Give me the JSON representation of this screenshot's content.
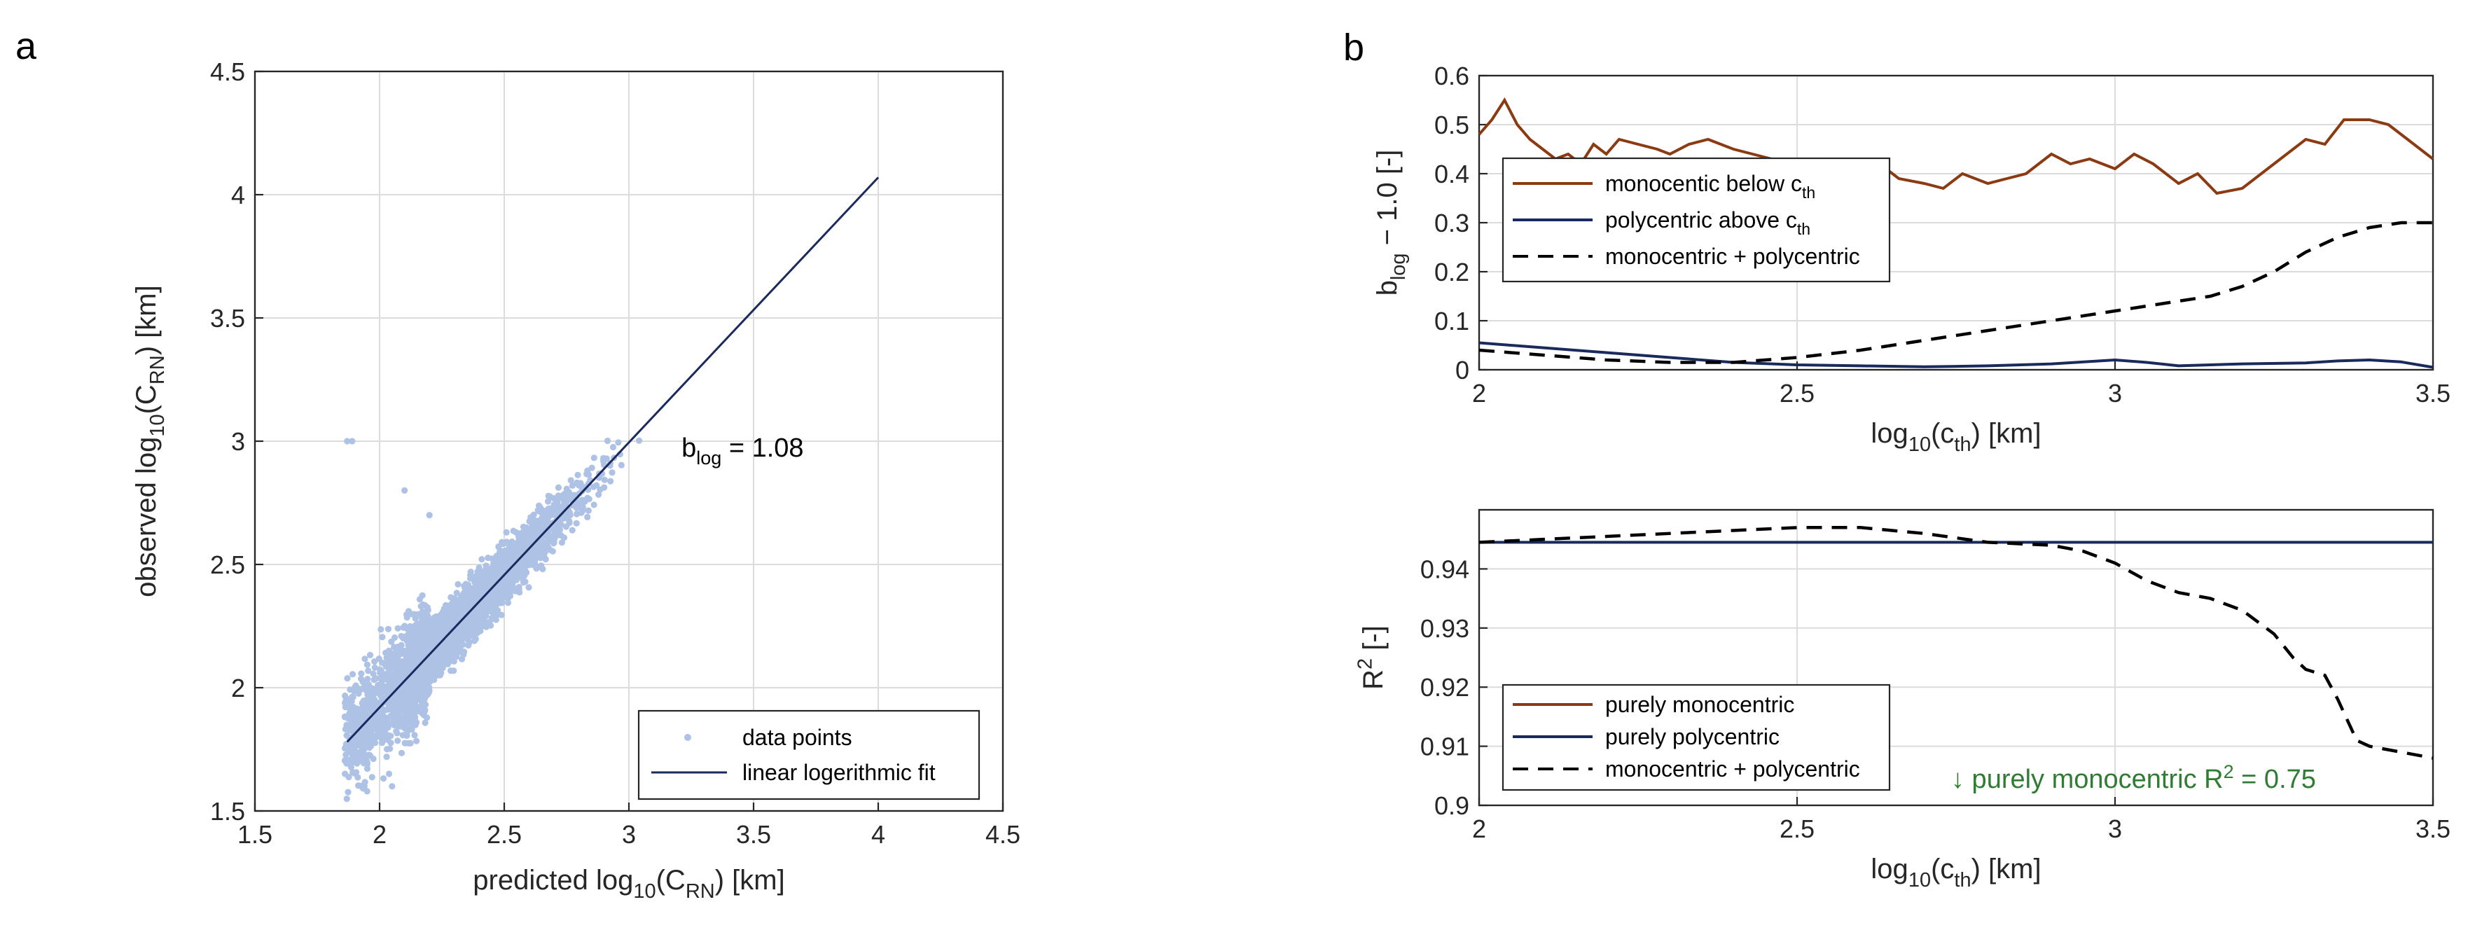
{
  "chart_data": [
    {
      "panel_label": "a",
      "type": "scatter",
      "xlabel": {
        "base": "predicted log",
        "sub1": "10",
        "mid": "(C",
        "sub2": "RN",
        "end": ") [km]"
      },
      "ylabel": {
        "base": "observed log",
        "sub1": "10",
        "mid": "(C",
        "sub2": "RN",
        "end": ") [km]"
      },
      "xlim": [
        1.5,
        4.5
      ],
      "ylim": [
        1.5,
        4.5
      ],
      "xticks": [
        "1.5",
        "2",
        "2.5",
        "3",
        "3.5",
        "4",
        "4.5"
      ],
      "yticks": [
        "1.5",
        "2",
        "2.5",
        "3",
        "3.5",
        "4",
        "4.5"
      ],
      "grid": true,
      "series": [
        {
          "name": "data points",
          "kind": "scatter",
          "color": "#aec2e6",
          "n_points": 3200,
          "x_range": [
            1.86,
            4.0
          ],
          "slope": 1.08,
          "spread": 0.1
        },
        {
          "name": "linear logerithmic fit",
          "kind": "line",
          "color": "#1b2a5c",
          "x": [
            1.87,
            4.0
          ],
          "y": [
            1.78,
            4.07
          ]
        }
      ],
      "outlier_points": [
        [
          1.87,
          3.0
        ],
        [
          1.89,
          3.0
        ],
        [
          2.1,
          2.8
        ],
        [
          2.2,
          2.7
        ],
        [
          1.95,
          1.58
        ],
        [
          2.05,
          1.6
        ]
      ],
      "annotation": {
        "base": "b",
        "sub": "log",
        "rest": " = 1.08",
        "x": 3.52,
        "y": 3.0
      },
      "legend_position": "bottom-right"
    },
    {
      "panel_label": "b",
      "type": "line",
      "xlabel": {
        "base": "log",
        "sub1": "10",
        "mid": "(c",
        "sub2": "th",
        "end": ") [km]"
      },
      "ylabel": {
        "base": "b",
        "sub": "log",
        "rest": " − 1.0 [-]"
      },
      "xlim": [
        2,
        3.5
      ],
      "ylim": [
        0,
        0.6
      ],
      "xticks": [
        "2",
        "2.5",
        "3",
        "3.5"
      ],
      "yticks": [
        "0",
        "0.1",
        "0.2",
        "0.3",
        "0.4",
        "0.5",
        "0.6"
      ],
      "grid": true,
      "legend_position": "top-left",
      "series": [
        {
          "name_base": "monocentic below c",
          "name_sub": "th",
          "color": "#8b3a12",
          "dash": false,
          "x": [
            2.0,
            2.02,
            2.04,
            2.06,
            2.08,
            2.1,
            2.12,
            2.14,
            2.16,
            2.18,
            2.2,
            2.22,
            2.25,
            2.28,
            2.3,
            2.33,
            2.36,
            2.4,
            2.43,
            2.46,
            2.5,
            2.53,
            2.56,
            2.6,
            2.63,
            2.66,
            2.7,
            2.73,
            2.76,
            2.8,
            2.83,
            2.86,
            2.9,
            2.93,
            2.96,
            3.0,
            3.03,
            3.06,
            3.1,
            3.13,
            3.16,
            3.2,
            3.23,
            3.26,
            3.3,
            3.33,
            3.36,
            3.4,
            3.43,
            3.46,
            3.5
          ],
          "y": [
            0.48,
            0.51,
            0.55,
            0.5,
            0.47,
            0.45,
            0.43,
            0.44,
            0.42,
            0.46,
            0.44,
            0.47,
            0.46,
            0.45,
            0.44,
            0.46,
            0.47,
            0.45,
            0.44,
            0.43,
            0.42,
            0.43,
            0.41,
            0.4,
            0.42,
            0.39,
            0.38,
            0.37,
            0.4,
            0.38,
            0.39,
            0.4,
            0.44,
            0.42,
            0.43,
            0.41,
            0.44,
            0.42,
            0.38,
            0.4,
            0.36,
            0.37,
            0.4,
            0.43,
            0.47,
            0.46,
            0.51,
            0.51,
            0.5,
            0.47,
            0.43
          ]
        },
        {
          "name_base": "polycentric above c",
          "name_sub": "th",
          "color": "#1b2a5c",
          "dash": false,
          "x": [
            2.0,
            2.1,
            2.2,
            2.3,
            2.4,
            2.5,
            2.6,
            2.7,
            2.8,
            2.9,
            3.0,
            3.05,
            3.1,
            3.2,
            3.3,
            3.35,
            3.4,
            3.45,
            3.5
          ],
          "y": [
            0.055,
            0.045,
            0.035,
            0.025,
            0.015,
            0.01,
            0.008,
            0.006,
            0.008,
            0.012,
            0.02,
            0.015,
            0.008,
            0.012,
            0.014,
            0.018,
            0.02,
            0.016,
            0.005
          ]
        },
        {
          "name_base": "monocentric + polycentric",
          "name_sub": "",
          "color": "#000000",
          "dash": true,
          "x": [
            2.0,
            2.1,
            2.2,
            2.3,
            2.4,
            2.5,
            2.6,
            2.7,
            2.8,
            2.9,
            3.0,
            3.05,
            3.1,
            3.15,
            3.2,
            3.25,
            3.3,
            3.35,
            3.4,
            3.45,
            3.5
          ],
          "y": [
            0.04,
            0.03,
            0.02,
            0.015,
            0.015,
            0.025,
            0.04,
            0.06,
            0.08,
            0.1,
            0.12,
            0.13,
            0.14,
            0.15,
            0.17,
            0.2,
            0.24,
            0.27,
            0.29,
            0.3,
            0.3
          ]
        }
      ]
    },
    {
      "panel_label": "",
      "type": "line",
      "xlabel": {
        "base": "log",
        "sub1": "10",
        "mid": "(c",
        "sub2": "th",
        "end": ") [km]"
      },
      "ylabel": {
        "base": "R",
        "sup": "2",
        "rest": " [-]"
      },
      "xlim": [
        2,
        3.5
      ],
      "ylim": [
        0.9,
        0.95
      ],
      "xticks": [
        "2",
        "2.5",
        "3",
        "3.5"
      ],
      "yticks": [
        "0.9",
        "0.91",
        "0.92",
        "0.93",
        "0.94"
      ],
      "ytick_values": [
        0.9,
        0.91,
        0.92,
        0.93,
        0.94
      ],
      "grid": true,
      "legend_position": "bottom-left",
      "series": [
        {
          "name_base": "purely monocentric",
          "color": "#8b3a12",
          "dash": false,
          "x": [],
          "y": []
        },
        {
          "name_base": "purely polycentric",
          "color": "#1b2a5c",
          "dash": false,
          "x": [
            2.0,
            3.5
          ],
          "y": [
            0.9445,
            0.9445
          ]
        },
        {
          "name_base": "monocentric + polycentric",
          "color": "#000000",
          "dash": true,
          "x": [
            2.0,
            2.2,
            2.4,
            2.5,
            2.6,
            2.7,
            2.8,
            2.9,
            2.95,
            3.0,
            3.05,
            3.1,
            3.15,
            3.2,
            3.25,
            3.28,
            3.3,
            3.33,
            3.35,
            3.38,
            3.4,
            3.45,
            3.5
          ],
          "y": [
            0.9445,
            0.9455,
            0.9465,
            0.947,
            0.947,
            0.946,
            0.9445,
            0.944,
            0.943,
            0.941,
            0.938,
            0.936,
            0.935,
            0.933,
            0.929,
            0.925,
            0.923,
            0.922,
            0.918,
            0.911,
            0.91,
            0.909,
            0.908
          ]
        }
      ],
      "note": {
        "prefix": "↓ purely monocentric R",
        "sup": "2",
        "rest": " = 0.75"
      }
    }
  ]
}
